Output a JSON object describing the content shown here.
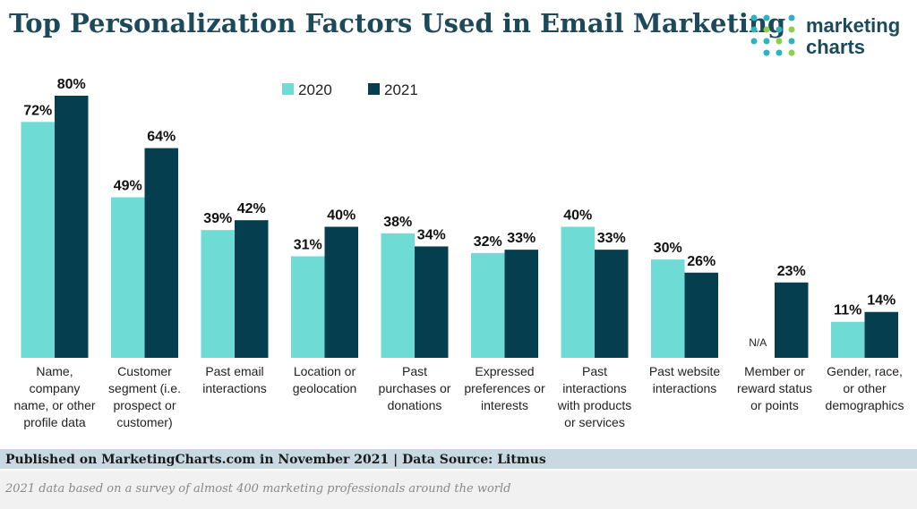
{
  "chart_data": {
    "type": "bar",
    "title": "Top Personalization Factors Used in Email Marketing",
    "categories": [
      "Name, company name, or other profile data",
      "Customer segment (i.e. prospect or customer)",
      "Past email interactions",
      "Location or geolocation",
      "Past purchases or donations",
      "Expressed preferences or interests",
      "Past interactions with products or services",
      "Past website interactions",
      "Member or reward status or points",
      "Gender, race, or other demographics"
    ],
    "series": [
      {
        "name": "2020",
        "color": "#6edbd5",
        "values": [
          72,
          49,
          39,
          31,
          38,
          32,
          40,
          30,
          null,
          11
        ],
        "value_labels": [
          "72%",
          "49%",
          "39%",
          "31%",
          "38%",
          "32%",
          "40%",
          "30%",
          "N/A",
          "11%"
        ]
      },
      {
        "name": "2021",
        "color": "#043e4f",
        "values": [
          80,
          64,
          42,
          40,
          34,
          33,
          33,
          26,
          23,
          14
        ],
        "value_labels": [
          "80%",
          "64%",
          "42%",
          "40%",
          "34%",
          "33%",
          "33%",
          "26%",
          "23%",
          "14%"
        ]
      }
    ],
    "legend": "top"
  },
  "logo": [
    "marketing",
    "charts"
  ],
  "source": "Published on MarketingCharts.com in November 2021 | Data Source: Litmus",
  "note": "2021 data based on a survey of almost 400 marketing professionals around the world"
}
